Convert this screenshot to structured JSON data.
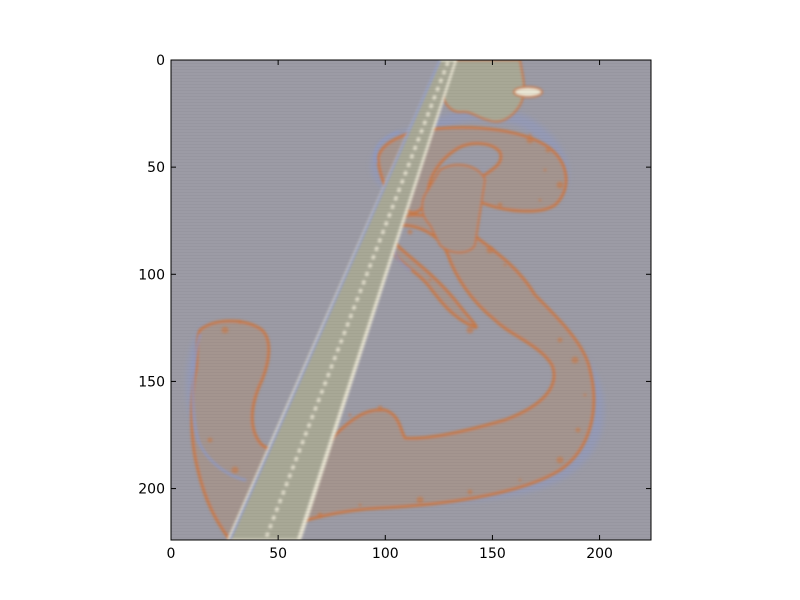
{
  "chart_data": {
    "type": "heatmap",
    "title": "",
    "xlabel": "",
    "ylabel": "",
    "xlim": [
      0,
      224
    ],
    "ylim": [
      224,
      0
    ],
    "xticks": [
      0,
      50,
      100,
      150,
      200
    ],
    "yticks": [
      0,
      50,
      100,
      150,
      200
    ],
    "grid": false,
    "image": {
      "description": "false-color feature visualization of a hook-shaped object with a diagonal textured band",
      "colors": {
        "background": "#9c9ba5",
        "object": "#a4958f",
        "band": "#a8a896",
        "edge_warm": "#c77a4a",
        "edge_cool": "#8f9ac4",
        "highlight": "#e8e4d2"
      }
    }
  }
}
